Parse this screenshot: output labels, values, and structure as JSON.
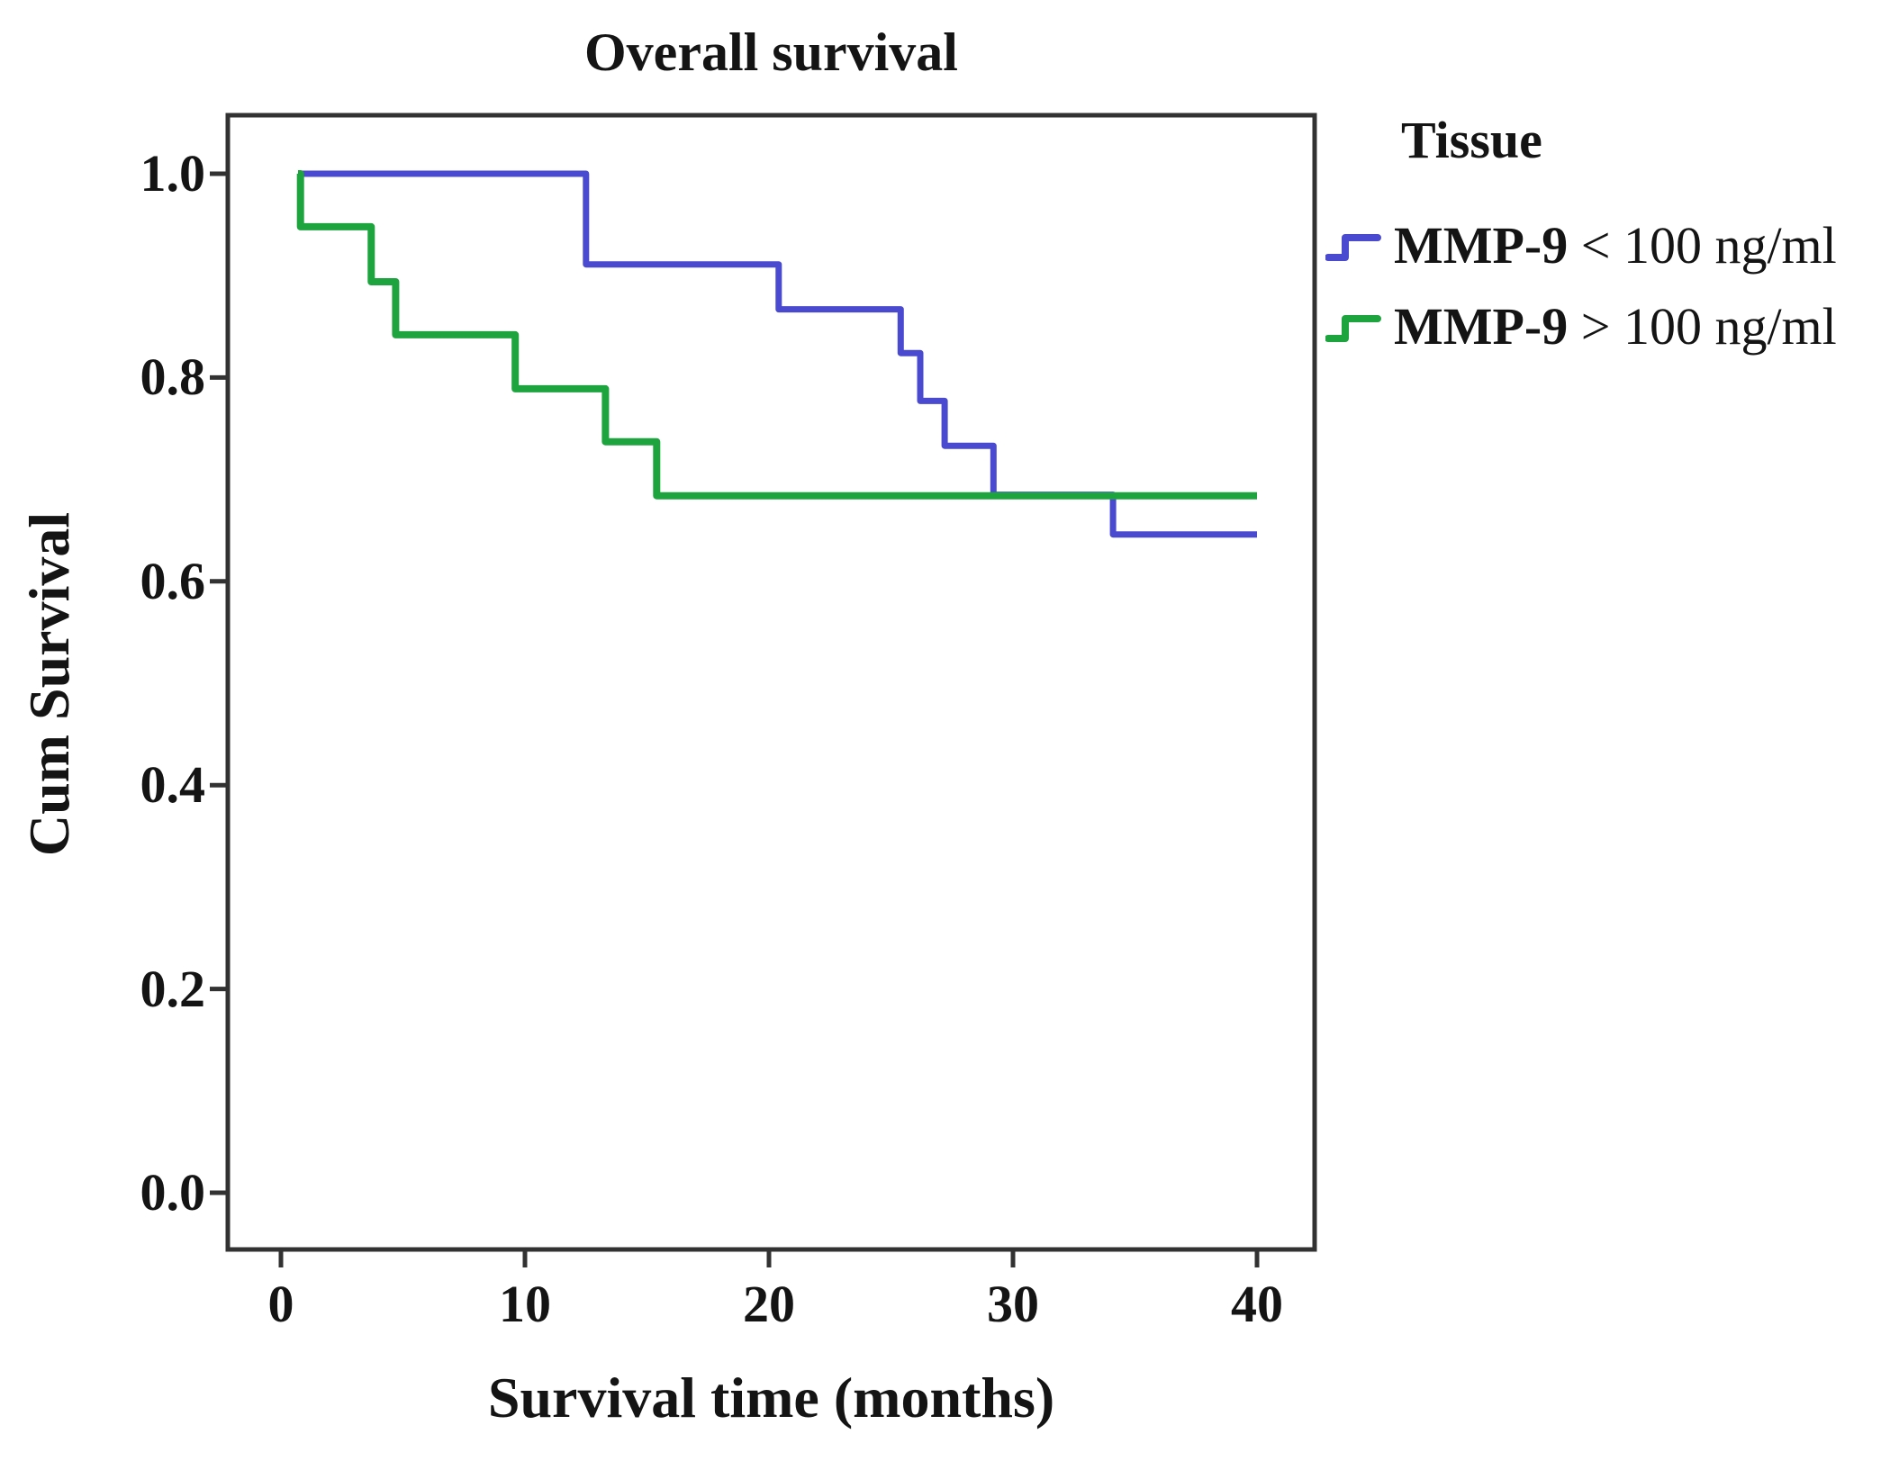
{
  "chart_data": {
    "type": "line",
    "subtype": "kaplan-meier-step",
    "title": "Overall survival",
    "xlabel": "Survival time (months)",
    "ylabel": "Cum Survival",
    "xlim": [
      -2.2,
      42.4
    ],
    "ylim": [
      -0.056,
      1.057
    ],
    "grid": false,
    "legend_position": "outside-right-top",
    "x_ticks": [
      {
        "label": "0",
        "t": 0
      },
      {
        "label": "10",
        "t": 10
      },
      {
        "label": "20",
        "t": 20
      },
      {
        "label": "30",
        "t": 30
      },
      {
        "label": "40",
        "t": 40
      }
    ],
    "y_ticks": [
      {
        "label": "0.0",
        "v": 0.0
      },
      {
        "label": "0.2",
        "v": 0.2
      },
      {
        "label": "0.4",
        "v": 0.4
      },
      {
        "label": "0.6",
        "v": 0.6
      },
      {
        "label": "0.8",
        "v": 0.8
      },
      {
        "label": "1.0",
        "v": 1.0
      }
    ],
    "series": [
      {
        "name": "MMP-9 < 100 ng/ml",
        "color": "#4a4ad0",
        "stroke_width": 7,
        "steps": [
          [
            0.7,
            1.0
          ],
          [
            12.5,
            0.911
          ],
          [
            20.4,
            0.867
          ],
          [
            25.4,
            0.824
          ],
          [
            26.2,
            0.777
          ],
          [
            27.2,
            0.733
          ],
          [
            29.2,
            0.685
          ],
          [
            34.1,
            0.646
          ],
          [
            40.0,
            0.646
          ]
        ]
      },
      {
        "name": "MMP-9 > 100 ng/ml",
        "color": "#1ea43e",
        "stroke_width": 8,
        "steps": [
          [
            0.7,
            1.0
          ],
          [
            0.8,
            0.948
          ],
          [
            3.7,
            0.894
          ],
          [
            4.7,
            0.842
          ],
          [
            9.6,
            0.789
          ],
          [
            13.3,
            0.737
          ],
          [
            15.4,
            0.684
          ],
          [
            40.0,
            0.684
          ]
        ]
      }
    ]
  },
  "legend": {
    "title": "Tissue",
    "entries": [
      {
        "bold": "MMP-9",
        "rest": " < 100 ng/ml"
      },
      {
        "bold": "MMP-9",
        "rest": " > 100 ng/ml"
      }
    ]
  },
  "colors": {
    "axis": "#323232",
    "text": "#141414",
    "background": "#ffffff"
  }
}
